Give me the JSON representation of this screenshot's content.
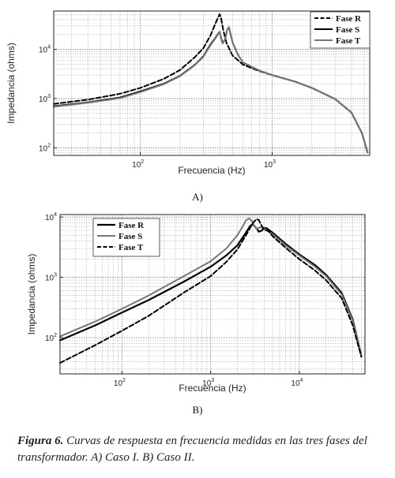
{
  "chart_data": [
    {
      "type": "line",
      "panel_label": "A)",
      "xlabel": "Frecuencia (Hz)",
      "ylabel": "Impedancia (ohms)",
      "x_scale": "log",
      "y_scale": "log",
      "xlim": [
        22,
        5500
      ],
      "ylim": [
        70,
        60000
      ],
      "xticks": [
        {
          "v": 100,
          "label": "10",
          "exp": "2"
        },
        {
          "v": 1000,
          "label": "10",
          "exp": "3"
        }
      ],
      "yticks": [
        {
          "v": 100,
          "label": "10",
          "exp": "2"
        },
        {
          "v": 1000,
          "label": "10",
          "exp": "3"
        },
        {
          "v": 10000,
          "label": "10",
          "exp": "4"
        }
      ],
      "grid": true,
      "legend_position": "top-right",
      "series": [
        {
          "name": "Fase R",
          "color": "#000000",
          "dash": "dashed",
          "width": 2,
          "x": [
            22,
            40,
            70,
            100,
            150,
            200,
            260,
            300,
            340,
            370,
            390,
            400,
            410,
            425,
            450,
            500,
            600,
            800,
            1000,
            1500,
            2000,
            3000,
            4000,
            4800,
            5300
          ],
          "y": [
            780,
            950,
            1250,
            1650,
            2500,
            3800,
            7000,
            10500,
            19000,
            33000,
            45000,
            52000,
            43000,
            25000,
            13500,
            7500,
            4900,
            3600,
            3000,
            2200,
            1650,
            980,
            520,
            200,
            80
          ]
        },
        {
          "name": "Fase S",
          "color": "#000000",
          "dash": "solid",
          "width": 2,
          "x": [
            22,
            40,
            70,
            100,
            150,
            200,
            260,
            300,
            340,
            370,
            390,
            400,
            410,
            420,
            440,
            455,
            470,
            500,
            550,
            600,
            800,
            1000,
            1500,
            2000,
            3000,
            4000,
            4800,
            5300
          ],
          "y": [
            700,
            840,
            1050,
            1400,
            2000,
            2900,
            4900,
            7200,
            12500,
            17000,
            21000,
            22500,
            17000,
            13500,
            16000,
            25000,
            28000,
            14000,
            7800,
            5400,
            3700,
            3000,
            2200,
            1650,
            980,
            520,
            200,
            80
          ]
        },
        {
          "name": "Fase T",
          "color": "#777777",
          "dash": "solid",
          "width": 2,
          "x": [
            22,
            40,
            70,
            100,
            150,
            200,
            260,
            300,
            340,
            370,
            390,
            400,
            410,
            420,
            440,
            455,
            470,
            500,
            550,
            600,
            800,
            1000,
            1500,
            2000,
            3000,
            4000,
            4800,
            5300
          ],
          "y": [
            680,
            820,
            1020,
            1350,
            1950,
            2850,
            4800,
            7000,
            12000,
            16500,
            20500,
            22000,
            16500,
            13000,
            16000,
            25000,
            28500,
            14000,
            7800,
            5400,
            3700,
            3000,
            2200,
            1650,
            980,
            520,
            200,
            80
          ]
        }
      ]
    },
    {
      "type": "line",
      "panel_label": "B)",
      "xlabel": "Frecuencia (Hz)",
      "ylabel": "Impedancia (ohms)",
      "x_scale": "log",
      "y_scale": "log",
      "xlim": [
        20,
        55000
      ],
      "ylim": [
        25,
        11000
      ],
      "xticks": [
        {
          "v": 100,
          "label": "10",
          "exp": "2"
        },
        {
          "v": 1000,
          "label": "10",
          "exp": "3"
        },
        {
          "v": 10000,
          "label": "10",
          "exp": "4"
        }
      ],
      "yticks": [
        {
          "v": 100,
          "label": "10",
          "exp": "2"
        },
        {
          "v": 1000,
          "label": "10",
          "exp": "3"
        },
        {
          "v": 10000,
          "label": "10",
          "exp": "4"
        }
      ],
      "grid": true,
      "legend_position": "top-left",
      "series": [
        {
          "name": "Fase R",
          "color": "#000000",
          "dash": "solid",
          "width": 2.2,
          "x": [
            20,
            50,
            100,
            200,
            500,
            1000,
            1500,
            2000,
            2500,
            2800,
            3000,
            3200,
            3500,
            3800,
            4000,
            4300,
            5000,
            7000,
            10000,
            15000,
            20000,
            30000,
            40000,
            50000
          ],
          "y": [
            90,
            160,
            260,
            420,
            850,
            1500,
            2300,
            3400,
            5500,
            7200,
            7600,
            6800,
            5700,
            6000,
            6600,
            6500,
            5500,
            3600,
            2400,
            1600,
            1100,
            550,
            200,
            50
          ]
        },
        {
          "name": "Fase S",
          "color": "#777777",
          "dash": "solid",
          "width": 2,
          "x": [
            20,
            50,
            100,
            200,
            500,
            1000,
            1500,
            2000,
            2300,
            2500,
            2700,
            2900,
            3100,
            3300,
            3600,
            4000,
            5000,
            7000,
            10000,
            15000,
            20000,
            30000,
            40000,
            50000
          ],
          "y": [
            105,
            185,
            300,
            500,
            1050,
            1850,
            3000,
            5000,
            7000,
            8800,
            9500,
            8700,
            7200,
            6300,
            6800,
            6500,
            5200,
            3400,
            2300,
            1500,
            1050,
            520,
            190,
            50
          ]
        },
        {
          "name": "Fase T",
          "color": "#000000",
          "dash": "dashed",
          "width": 2,
          "x": [
            20,
            50,
            100,
            200,
            500,
            1000,
            1500,
            2000,
            2500,
            3000,
            3300,
            3500,
            3700,
            4000,
            4500,
            5000,
            7000,
            10000,
            15000,
            20000,
            30000,
            40000,
            50000
          ],
          "y": [
            38,
            75,
            130,
            230,
            560,
            1050,
            1800,
            2900,
            5000,
            8000,
            9300,
            8900,
            7500,
            6200,
            5800,
            4800,
            3100,
            2000,
            1300,
            900,
            450,
            160,
            48
          ]
        }
      ]
    }
  ],
  "caption": {
    "figure_label": "Figura 6.",
    "text": " Curvas de respuesta en frecuencia medidas en las tres fases del transformador. A) Caso I. B) Caso II."
  }
}
